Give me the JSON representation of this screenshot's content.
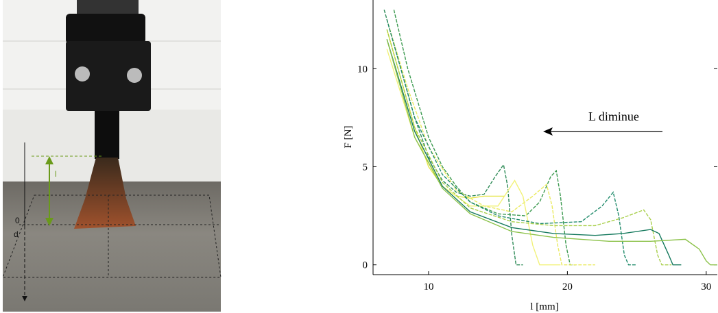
{
  "photo": {
    "labels": [
      "l",
      "0",
      "d"
    ]
  },
  "chart_data": {
    "type": "line",
    "xlabel": "l [mm]",
    "ylabel": "F [N]",
    "xlim": [
      6,
      30.8
    ],
    "ylim": [
      -0.5,
      13.5
    ],
    "xticks": [
      10,
      20,
      30
    ],
    "yticks": [
      0,
      5,
      10
    ],
    "annotations": [
      {
        "text": "L diminue"
      }
    ],
    "series": [
      {
        "color": "#2e8b57",
        "dashed": true,
        "x": [
          6.8,
          8,
          9,
          10,
          11,
          12,
          13,
          14,
          14.8,
          15.4,
          15.7,
          16,
          16.3,
          16.8
        ],
        "values": [
          13,
          10,
          7.5,
          5.5,
          4.3,
          3.7,
          3.5,
          3.6,
          4.5,
          5.1,
          4,
          1.5,
          0,
          0
        ]
      },
      {
        "color": "#e6e64c",
        "dashed": false,
        "x": [
          7,
          8,
          9,
          10,
          11,
          12,
          13,
          14,
          15.5
        ],
        "values": [
          12,
          9.5,
          7,
          5,
          4,
          3.5,
          3.4,
          3.5,
          3.5
        ]
      },
      {
        "color": "#3c9a50",
        "dashed": true,
        "x": [
          7.5,
          8.5,
          10,
          11,
          12,
          13,
          15,
          17,
          18,
          18.8,
          19.2,
          19.5,
          19.9,
          20.2,
          20.6
        ],
        "values": [
          13,
          10,
          6.5,
          5,
          4,
          3.2,
          2.6,
          2.5,
          3.2,
          4.5,
          4.8,
          3.5,
          1,
          0,
          0
        ]
      },
      {
        "color": "#eaea60",
        "dashed": true,
        "x": [
          7,
          8.5,
          10,
          12,
          14,
          16,
          17.5,
          18.5,
          18.9,
          19.3,
          19.6,
          22
        ],
        "values": [
          12.5,
          9,
          6,
          3.8,
          3,
          2.7,
          3.5,
          4.1,
          3,
          1,
          0,
          0
        ]
      },
      {
        "color": "#f2f27a",
        "dashed": false,
        "x": [
          7,
          9,
          11,
          13,
          15,
          16.2,
          16.8,
          17.5,
          18,
          19.5
        ],
        "values": [
          11,
          6.5,
          4,
          3,
          3,
          4.3,
          3.5,
          1,
          0,
          0
        ]
      },
      {
        "color": "#1f8a6a",
        "dashed": true,
        "x": [
          7,
          9,
          11,
          13,
          15,
          18,
          21,
          22.5,
          23.3,
          23.7,
          24.1,
          24.4,
          25
        ],
        "values": [
          12.5,
          7.5,
          4.6,
          3.2,
          2.5,
          2.1,
          2.2,
          3,
          3.7,
          2.5,
          0.5,
          0,
          0
        ]
      },
      {
        "color": "#a8cf4a",
        "dashed": true,
        "x": [
          7,
          9,
          11,
          13,
          16,
          19,
          22,
          24,
          25.5,
          26,
          26.5,
          26.8,
          27.5
        ],
        "values": [
          12,
          7,
          4.2,
          2.9,
          2.2,
          2,
          2,
          2.4,
          2.8,
          2.3,
          0.5,
          0,
          0
        ]
      },
      {
        "color": "#167a5e",
        "dashed": false,
        "x": [
          7,
          9,
          11,
          13,
          16,
          19,
          22,
          24,
          26,
          26.6,
          27.3,
          27.6,
          28.2
        ],
        "values": [
          11.5,
          6.8,
          4,
          2.7,
          1.9,
          1.6,
          1.5,
          1.6,
          1.8,
          1.6,
          0.5,
          0,
          0
        ]
      },
      {
        "color": "#8cc24a",
        "dashed": false,
        "x": [
          7,
          9,
          11,
          13,
          16,
          19,
          23,
          26,
          28.5,
          29.5,
          30,
          30.3,
          30.8
        ],
        "values": [
          11.5,
          6.5,
          3.9,
          2.6,
          1.7,
          1.4,
          1.2,
          1.2,
          1.3,
          0.8,
          0.2,
          0,
          0
        ]
      }
    ]
  }
}
